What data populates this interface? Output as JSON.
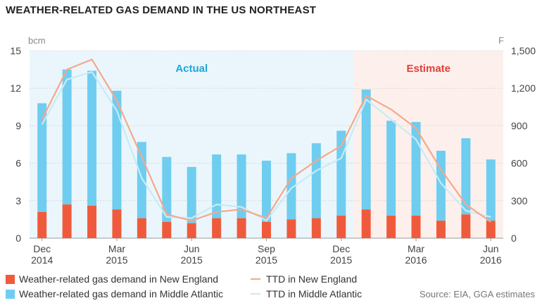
{
  "title": "WEATHER-RELATED GAS DEMAND IN THE US NORTHEAST",
  "source": "Source: EIA, GGA estimates",
  "colors": {
    "new_england_bar": "#f05a3c",
    "middle_atlantic_bar": "#6fcdf0",
    "ttd_new_england": "#f5a88c",
    "ttd_middle_atlantic": "#c7ebf8",
    "actual_bg": "#eaf6fc",
    "estimate_bg": "#fdf0ec",
    "actual_text": "#1aa8d8",
    "estimate_text": "#e0403a",
    "grid": "#d8d8d8"
  },
  "chart_data": {
    "type": "bar",
    "categories": [
      "Dec 2014",
      "Jan 2015",
      "Feb 2015",
      "Mar 2015",
      "Apr 2015",
      "May 2015",
      "Jun 2015",
      "Jul 2015",
      "Aug 2015",
      "Sep 2015",
      "Oct 2015",
      "Nov 2015",
      "Dec 2015",
      "Jan 2016",
      "Feb 2016",
      "Mar 2016",
      "Apr 2016",
      "May 2016",
      "Jun 2016"
    ],
    "x_tick_labels": [
      {
        "index": 0,
        "month": "Dec",
        "year": "2014"
      },
      {
        "index": 3,
        "month": "Mar",
        "year": "2015"
      },
      {
        "index": 6,
        "month": "Jun",
        "year": "2015"
      },
      {
        "index": 9,
        "month": "Sep",
        "year": "2015"
      },
      {
        "index": 12,
        "month": "Dec",
        "year": "2015"
      },
      {
        "index": 15,
        "month": "Mar",
        "year": "2016"
      },
      {
        "index": 18,
        "month": "Jun",
        "year": "2016"
      }
    ],
    "series": [
      {
        "name": "Weather-related gas demand in New England",
        "kind": "bar",
        "axis": "left",
        "values": [
          2.1,
          2.7,
          2.6,
          2.3,
          1.6,
          1.3,
          1.2,
          1.6,
          1.6,
          1.3,
          1.5,
          1.6,
          1.8,
          2.3,
          1.8,
          1.8,
          1.4,
          1.9,
          1.4
        ]
      },
      {
        "name": "Weather-related gas demand in Middle Atlantic",
        "kind": "bar",
        "axis": "left",
        "values": [
          8.7,
          10.8,
          10.8,
          9.5,
          6.1,
          5.2,
          4.5,
          5.1,
          5.1,
          4.9,
          5.3,
          6.0,
          6.8,
          9.6,
          7.6,
          7.5,
          5.6,
          6.1,
          4.9
        ]
      },
      {
        "name": "TTD in New England",
        "kind": "line",
        "axis": "right",
        "values": [
          950,
          1350,
          1430,
          1100,
          650,
          190,
          140,
          210,
          230,
          160,
          480,
          620,
          740,
          1140,
          1030,
          880,
          550,
          270,
          130
        ]
      },
      {
        "name": "TTD in Middle Atlantic",
        "kind": "line",
        "axis": "right",
        "values": [
          910,
          1270,
          1330,
          1020,
          480,
          170,
          160,
          270,
          250,
          140,
          400,
          540,
          640,
          1110,
          950,
          790,
          440,
          220,
          170
        ]
      }
    ],
    "stacked": true,
    "left_axis": {
      "unit": "bcm",
      "min": 0,
      "max": 15,
      "ticks": [
        0,
        3,
        6,
        9,
        12,
        15
      ]
    },
    "right_axis": {
      "unit": "F",
      "min": 0,
      "max": 1500,
      "ticks": [
        0,
        300,
        600,
        900,
        1200,
        1500
      ],
      "tick_labels": [
        "0",
        "300",
        "600",
        "900",
        "1,200",
        "1,500"
      ]
    },
    "regions": [
      {
        "label": "Actual",
        "from_index": 0,
        "to_index": 12
      },
      {
        "label": "Estimate",
        "from_index": 13,
        "to_index": 18
      }
    ],
    "grid": true,
    "legend": "bottom"
  }
}
